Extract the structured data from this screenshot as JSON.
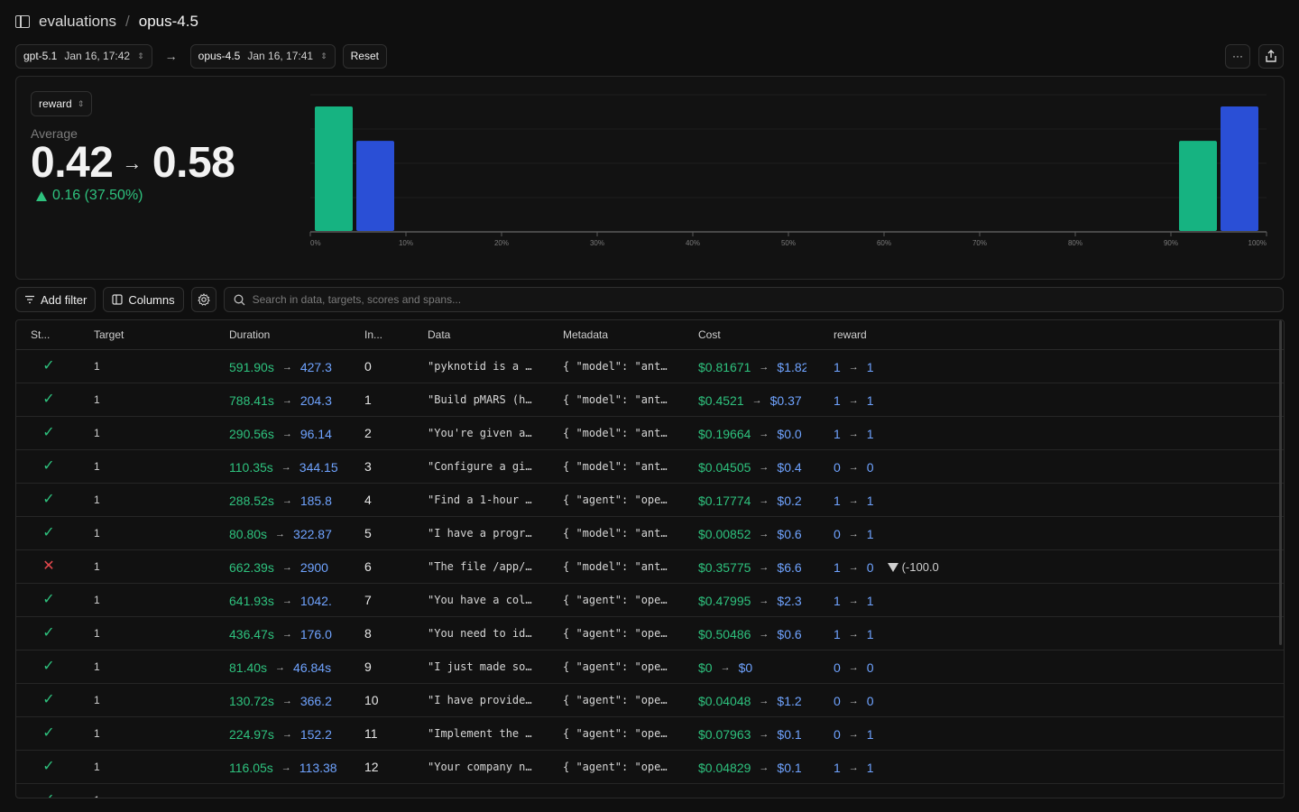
{
  "breadcrumb": {
    "parent": "evaluations",
    "separator": "/",
    "current": "opus-4.5"
  },
  "compare": {
    "base": {
      "name": "gpt-5.1",
      "date": "Jan 16, 17:42"
    },
    "arrow": "→",
    "target": {
      "name": "opus-4.5",
      "date": "Jan 16, 17:41"
    },
    "reset_label": "Reset",
    "more_label": "···"
  },
  "summary": {
    "metric": "reward",
    "avg_label": "Average",
    "base_avg": "0.42",
    "target_avg": "0.58",
    "delta": "0.16 (37.50%)"
  },
  "chart_data": {
    "type": "bar",
    "x_tick_labels": [
      "0%",
      "10%",
      "20%",
      "30%",
      "40%",
      "50%",
      "60%",
      "70%",
      "80%",
      "90%",
      "100%"
    ],
    "series": [
      {
        "color": "#16b381",
        "bins": [
          {
            "x": 0,
            "value": 58
          },
          {
            "x": 1,
            "value": 42
          }
        ]
      },
      {
        "color": "#2a4fd6",
        "bins": [
          {
            "x": 0,
            "value": 42
          },
          {
            "x": 1,
            "value": 58
          }
        ]
      }
    ],
    "ylim": [
      0,
      58
    ],
    "grid": true
  },
  "toolbar": {
    "add_filter": "Add filter",
    "columns": "Columns",
    "search_placeholder": "Search in data, targets, scores and spans..."
  },
  "table": {
    "headers": {
      "status": "St...",
      "target": "Target",
      "duration": "Duration",
      "input": "In...",
      "data": "Data",
      "metadata": "Metadata",
      "cost": "Cost",
      "reward": "reward"
    },
    "rows": [
      {
        "status": "ok",
        "target": "1",
        "dur_a": "591.90s",
        "dur_b": "427.3",
        "idx": "0",
        "data": "\"pyknotid is a …",
        "meta": "{ \"model\": \"ant…",
        "cost_a": "$0.81671",
        "cost_b": "$1.82",
        "rew_a": "1",
        "rew_b": "1"
      },
      {
        "status": "ok",
        "target": "1",
        "dur_a": "788.41s",
        "dur_b": "204.3",
        "idx": "1",
        "data": "\"Build pMARS (h…",
        "meta": "{ \"model\": \"ant…",
        "cost_a": "$0.4521",
        "cost_b": "$0.37",
        "rew_a": "1",
        "rew_b": "1"
      },
      {
        "status": "ok",
        "target": "1",
        "dur_a": "290.56s",
        "dur_b": "96.14",
        "idx": "2",
        "data": "\"You're given a…",
        "meta": "{ \"model\": \"ant…",
        "cost_a": "$0.19664",
        "cost_b": "$0.0",
        "rew_a": "1",
        "rew_b": "1"
      },
      {
        "status": "ok",
        "target": "1",
        "dur_a": "110.35s",
        "dur_b": "344.15",
        "idx": "3",
        "data": "\"Configure a gi…",
        "meta": "{ \"model\": \"ant…",
        "cost_a": "$0.04505",
        "cost_b": "$0.4",
        "rew_a": "0",
        "rew_b": "0"
      },
      {
        "status": "ok",
        "target": "1",
        "dur_a": "288.52s",
        "dur_b": "185.8",
        "idx": "4",
        "data": "\"Find a 1-hour …",
        "meta": "{ \"agent\": \"ope…",
        "cost_a": "$0.17774",
        "cost_b": "$0.2",
        "rew_a": "1",
        "rew_b": "1"
      },
      {
        "status": "ok",
        "target": "1",
        "dur_a": "80.80s",
        "dur_b": "322.87",
        "idx": "5",
        "data": "\"I have a progr…",
        "meta": "{ \"model\": \"ant…",
        "cost_a": "$0.00852",
        "cost_b": "$0.6",
        "rew_a": "0",
        "rew_b": "1"
      },
      {
        "status": "err",
        "target": "1",
        "dur_a": "662.39s",
        "dur_b": "2900",
        "idx": "6",
        "data": "\"The file /app/…",
        "meta": "{ \"model\": \"ant…",
        "cost_a": "$0.35775",
        "cost_b": "$6.6",
        "rew_a": "1",
        "rew_b": "0",
        "rew_delta": "(-100.0"
      },
      {
        "status": "ok",
        "target": "1",
        "dur_a": "641.93s",
        "dur_b": "1042.",
        "idx": "7",
        "data": "\"You have a col…",
        "meta": "{ \"agent\": \"ope…",
        "cost_a": "$0.47995",
        "cost_b": "$2.3",
        "rew_a": "1",
        "rew_b": "1"
      },
      {
        "status": "ok",
        "target": "1",
        "dur_a": "436.47s",
        "dur_b": "176.0",
        "idx": "8",
        "data": "\"You need to id…",
        "meta": "{ \"agent\": \"ope…",
        "cost_a": "$0.50486",
        "cost_b": "$0.6",
        "rew_a": "1",
        "rew_b": "1"
      },
      {
        "status": "ok",
        "target": "1",
        "dur_a": "81.40s",
        "dur_b": "46.84s",
        "idx": "9",
        "data": "\"I just made so…",
        "meta": "{ \"agent\": \"ope…",
        "cost_a": "$0",
        "cost_b": "$0",
        "rew_a": "0",
        "rew_b": "0"
      },
      {
        "status": "ok",
        "target": "1",
        "dur_a": "130.72s",
        "dur_b": "366.2",
        "idx": "10",
        "data": "\"I have provide…",
        "meta": "{ \"agent\": \"ope…",
        "cost_a": "$0.04048",
        "cost_b": "$1.2",
        "rew_a": "0",
        "rew_b": "0"
      },
      {
        "status": "ok",
        "target": "1",
        "dur_a": "224.97s",
        "dur_b": "152.2",
        "idx": "11",
        "data": "\"Implement the …",
        "meta": "{ \"agent\": \"ope…",
        "cost_a": "$0.07963",
        "cost_b": "$0.1",
        "rew_a": "0",
        "rew_b": "1"
      },
      {
        "status": "ok",
        "target": "1",
        "dur_a": "116.05s",
        "dur_b": "113.38",
        "idx": "12",
        "data": "\"Your company n…",
        "meta": "{ \"agent\": \"ope…",
        "cost_a": "$0.04829",
        "cost_b": "$0.1",
        "rew_a": "1",
        "rew_b": "1"
      },
      {
        "status": "ok",
        "target": "1",
        "dur_a": "",
        "dur_b": "",
        "idx": "",
        "data": "",
        "meta": "",
        "cost_a": "",
        "cost_b": "",
        "rew_a": "",
        "rew_b": ""
      }
    ]
  }
}
